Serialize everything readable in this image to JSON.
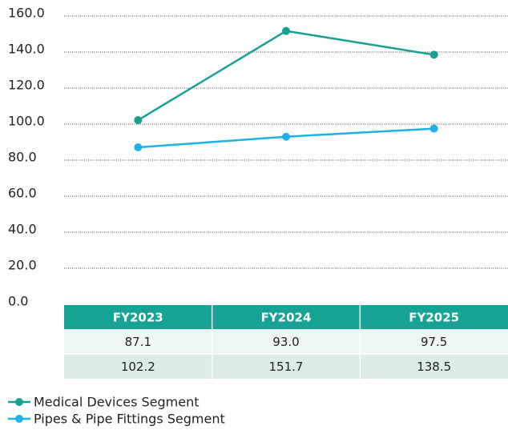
{
  "chart_data": {
    "type": "line",
    "categories": [
      "FY2023",
      "FY2024",
      "FY2025"
    ],
    "series": [
      {
        "name": "Medical Devices Segment",
        "color": "#17a090",
        "values": [
          102.2,
          151.7,
          138.5
        ],
        "value_labels": [
          "102.2",
          "151.7",
          "138.5"
        ]
      },
      {
        "name": "Pipes & Pipe Fittings Segment",
        "color": "#1fb2e6",
        "values": [
          87.1,
          93.0,
          97.5
        ],
        "value_labels": [
          "87.1",
          "93.0",
          "97.5"
        ]
      }
    ],
    "ylim": [
      0,
      160
    ],
    "yticks": [
      {
        "value": 0,
        "label": "0.0"
      },
      {
        "value": 20,
        "label": "20.0"
      },
      {
        "value": 40,
        "label": "40.0"
      },
      {
        "value": 60,
        "label": "60.0"
      },
      {
        "value": 80,
        "label": "80.0"
      },
      {
        "value": 100,
        "label": "100.0"
      },
      {
        "value": 120,
        "label": "120.0"
      },
      {
        "value": 140,
        "label": "140.0"
      },
      {
        "value": 160,
        "label": "160.0"
      }
    ],
    "grid": true,
    "legend": "bottom"
  }
}
